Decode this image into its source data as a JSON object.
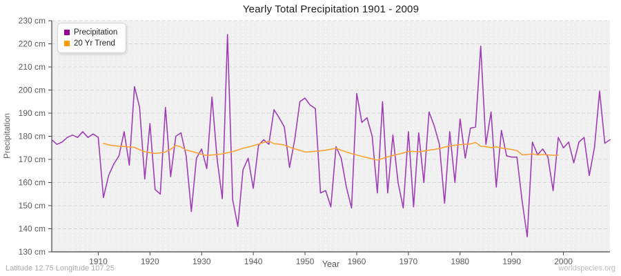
{
  "title": "Yearly Total Precipitation 1901 - 2009",
  "x_axis": {
    "label": "Year",
    "ticks": [
      {
        "value": 1910,
        "label": "1910"
      },
      {
        "value": 1920,
        "label": "1920"
      },
      {
        "value": 1930,
        "label": "1930"
      },
      {
        "value": 1940,
        "label": "1940"
      },
      {
        "value": 1950,
        "label": "1950"
      },
      {
        "value": 1960,
        "label": "1960"
      },
      {
        "value": 1970,
        "label": "1970"
      },
      {
        "value": 1980,
        "label": "1980"
      },
      {
        "value": 1990,
        "label": "1990"
      },
      {
        "value": 2000,
        "label": "2000"
      }
    ]
  },
  "y_axis": {
    "label": "Precipitation",
    "unit": "cm",
    "ticks": [
      {
        "value": 130,
        "label": "130 cm"
      },
      {
        "value": 140,
        "label": "140 cm"
      },
      {
        "value": 150,
        "label": "150 cm"
      },
      {
        "value": 160,
        "label": "160 cm"
      },
      {
        "value": 170,
        "label": "170 cm"
      },
      {
        "value": 180,
        "label": "180 cm"
      },
      {
        "value": 190,
        "label": "190 cm"
      },
      {
        "value": 200,
        "label": "200 cm"
      },
      {
        "value": 210,
        "label": "210 cm"
      },
      {
        "value": 220,
        "label": "220 cm"
      },
      {
        "value": 230,
        "label": "230 cm"
      }
    ]
  },
  "legend": [
    {
      "label": "Precipitation",
      "color": "#990099"
    },
    {
      "label": "20 Yr Trend",
      "color": "#ff9900"
    }
  ],
  "footer": {
    "left": "Latitude 12.75 Longitude 107.25",
    "right": "worldspecies.org"
  },
  "colors": {
    "precipitation_line": "#9e3cb4",
    "trend_line": "#fba237",
    "plot_background": "#f0f0f0",
    "h_grid": "#d8d8d8",
    "v_grid": "#ffffff",
    "axis": "#444444"
  },
  "chart_data": {
    "type": "line",
    "title": "Yearly Total Precipitation 1901 - 2009",
    "xlabel": "Year",
    "ylabel": "Precipitation",
    "xlim": [
      1901,
      2009
    ],
    "ylim": [
      130,
      230
    ],
    "y_tick_step": 10,
    "grid": true,
    "legend_position": "top-left",
    "plot_bg": "#f0f0f0",
    "series": [
      {
        "name": "Precipitation",
        "color": "#9e3cb4",
        "x_start": 1901,
        "values": [
          178.5,
          176.5,
          177.5,
          179.5,
          180.5,
          179.5,
          182,
          179.5,
          181,
          179.5,
          153.5,
          163,
          168,
          171.5,
          182,
          167.5,
          201.5,
          192.5,
          161.5,
          185.5,
          157,
          155,
          192.5,
          162.5,
          180,
          181.5,
          171.5,
          147.5,
          170.5,
          174.5,
          166,
          197,
          170,
          153,
          224,
          152.5,
          141,
          165.5,
          170.5,
          157.5,
          176,
          178.5,
          176.5,
          191.5,
          188,
          184,
          166.5,
          178.5,
          195,
          196.5,
          193.5,
          192,
          155.5,
          156.5,
          149.5,
          175.5,
          170.5,
          158,
          149,
          198.5,
          186,
          188,
          180,
          155.5,
          195,
          155.5,
          180.5,
          160,
          149,
          182,
          149.5,
          181.5,
          160,
          190.5,
          184.5,
          176.5,
          151,
          182,
          160,
          187.5,
          170.5,
          183.5,
          184,
          219,
          176.5,
          190.5,
          158,
          182.5,
          171.5,
          171,
          171,
          152,
          136.5,
          177.5,
          172,
          174.5,
          171,
          156.5,
          179.5,
          175,
          177.5,
          168.5,
          177.5,
          179.5,
          163,
          175,
          199.5,
          177,
          178.5
        ]
      },
      {
        "name": "20 Yr Trend",
        "color": "#fba237",
        "x_start": 1911,
        "values": [
          176.9,
          176.3,
          175.9,
          175.7,
          175.6,
          175.4,
          175.2,
          174.2,
          173.3,
          172.9,
          172.6,
          172.8,
          173.2,
          174.4,
          176.0,
          175.4,
          174.0,
          173.5,
          172.9,
          172.2,
          171.7,
          171.9,
          172.1,
          172.4,
          172.9,
          173.3,
          174.1,
          174.8,
          175.3,
          175.9,
          176.6,
          177.3,
          177.9,
          176.8,
          176.6,
          176.2,
          175.3,
          174.6,
          173.9,
          173.2,
          173.3,
          173.5,
          173.7,
          174.0,
          174.4,
          174.8,
          174.0,
          173.2,
          172.5,
          171.9,
          171.3,
          170.8,
          170.2,
          169.7,
          170.4,
          171.1,
          171.7,
          172.2,
          172.8,
          173.5,
          173.4,
          173.3,
          173.6,
          174.0,
          174.3,
          174.7,
          175.3,
          175.8,
          176.1,
          176.4,
          176.5,
          176.7,
          177.3,
          175.7,
          175.5,
          175.1,
          175.4,
          174.9,
          174.6,
          174.3,
          173.8,
          172.0,
          172.1,
          172.4,
          171.9,
          172.1,
          171.9,
          171.8,
          171.8
        ]
      }
    ]
  }
}
